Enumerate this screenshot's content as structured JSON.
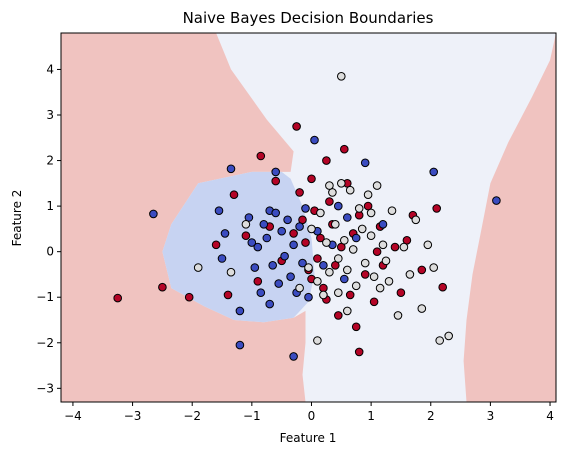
{
  "chart_data": {
    "type": "scatter",
    "title": "Naive Bayes Decision Boundaries",
    "xlabel": "Feature 1",
    "ylabel": "Feature 2",
    "xlim": [
      -4.2,
      4.1
    ],
    "ylim": [
      -3.3,
      4.8
    ],
    "xticks": [
      -4,
      -3,
      -2,
      -1,
      0,
      1,
      2,
      3,
      4
    ],
    "yticks": [
      -3,
      -2,
      -1,
      0,
      1,
      2,
      3,
      4
    ],
    "grid": false,
    "class_colors": {
      "red": "#b40426",
      "blue": "#3b4cc0",
      "white": "#dddddd"
    },
    "region_colors": {
      "red": "#f0c3c0",
      "blue": "#c7d3f2",
      "white": "#eef1f9"
    },
    "regions": {
      "left_red": [
        [
          -4.2,
          4.8
        ],
        [
          -1.6,
          4.8
        ],
        [
          -1.35,
          4.0
        ],
        [
          -0.75,
          2.9
        ],
        [
          -0.3,
          2.2
        ],
        [
          -0.35,
          1.75
        ],
        [
          -1.0,
          1.75
        ],
        [
          -1.9,
          1.5
        ],
        [
          -2.35,
          0.6
        ],
        [
          -2.5,
          0.0
        ],
        [
          -2.35,
          -0.8
        ],
        [
          -1.8,
          -1.2
        ],
        [
          -1.3,
          -1.5
        ],
        [
          -0.8,
          -1.55
        ],
        [
          -0.3,
          -1.45
        ],
        [
          -0.1,
          -1.3
        ],
        [
          -0.1,
          -2.0
        ],
        [
          -0.15,
          -2.7
        ],
        [
          -0.1,
          -3.3
        ],
        [
          -4.2,
          -3.3
        ]
      ],
      "right_red": [
        [
          4.1,
          4.8
        ],
        [
          4.1,
          -3.3
        ],
        [
          2.6,
          -3.3
        ],
        [
          2.55,
          -2.4
        ],
        [
          2.6,
          -1.5
        ],
        [
          2.7,
          -0.5
        ],
        [
          2.85,
          0.5
        ],
        [
          3.0,
          1.5
        ],
        [
          3.3,
          2.4
        ],
        [
          3.7,
          3.4
        ],
        [
          4.0,
          4.2
        ]
      ],
      "center_blue": [
        [
          -2.35,
          0.6
        ],
        [
          -2.5,
          0.0
        ],
        [
          -2.35,
          -0.8
        ],
        [
          -1.8,
          -1.2
        ],
        [
          -1.3,
          -1.5
        ],
        [
          -0.8,
          -1.55
        ],
        [
          -0.3,
          -1.45
        ],
        [
          -0.05,
          -1.1
        ],
        [
          0.05,
          -0.5
        ],
        [
          0.0,
          0.3
        ],
        [
          -0.15,
          1.0
        ],
        [
          -0.35,
          1.6
        ],
        [
          -0.5,
          1.75
        ],
        [
          -1.0,
          1.75
        ],
        [
          -1.9,
          1.5
        ]
      ]
    },
    "series": [
      {
        "class": "red",
        "points": [
          [
            -3.25,
            -1.02
          ],
          [
            -2.5,
            -0.78
          ],
          [
            -2.05,
            -1.0
          ],
          [
            -1.3,
            1.25
          ],
          [
            -0.85,
            2.1
          ],
          [
            -0.6,
            1.55
          ],
          [
            -0.3,
            0.4
          ],
          [
            -0.25,
            2.75
          ],
          [
            -0.2,
            1.3
          ],
          [
            -0.15,
            0.7
          ],
          [
            -0.1,
            0.2
          ],
          [
            -0.05,
            -0.4
          ],
          [
            0.0,
            1.6
          ],
          [
            0.0,
            -0.6
          ],
          [
            0.05,
            0.9
          ],
          [
            0.1,
            -0.15
          ],
          [
            0.15,
            0.3
          ],
          [
            0.2,
            -0.8
          ],
          [
            0.25,
            2.0
          ],
          [
            0.3,
            1.1
          ],
          [
            0.35,
            0.6
          ],
          [
            0.4,
            -0.3
          ],
          [
            0.45,
            -1.4
          ],
          [
            0.5,
            0.1
          ],
          [
            0.55,
            2.25
          ],
          [
            0.6,
            1.5
          ],
          [
            0.65,
            -0.95
          ],
          [
            0.7,
            0.4
          ],
          [
            0.8,
            0.8
          ],
          [
            0.9,
            -0.5
          ],
          [
            0.95,
            1.0
          ],
          [
            1.05,
            -1.1
          ],
          [
            1.1,
            0.0
          ],
          [
            1.15,
            0.55
          ],
          [
            1.2,
            -0.3
          ],
          [
            1.4,
            0.1
          ],
          [
            1.5,
            -0.9
          ],
          [
            1.6,
            0.25
          ],
          [
            1.7,
            0.8
          ],
          [
            1.85,
            -0.4
          ],
          [
            2.1,
            0.95
          ],
          [
            2.2,
            -0.78
          ],
          [
            0.75,
            -1.65
          ],
          [
            0.8,
            -2.2
          ],
          [
            0.25,
            -1.05
          ],
          [
            -0.7,
            0.55
          ],
          [
            -1.6,
            0.15
          ],
          [
            -1.1,
            0.35
          ],
          [
            -0.5,
            -0.2
          ],
          [
            -1.4,
            -0.95
          ],
          [
            -0.9,
            -0.65
          ]
        ],
        "color": "#b40426"
      },
      {
        "class": "blue",
        "points": [
          [
            -2.65,
            0.83
          ],
          [
            -1.35,
            1.82
          ],
          [
            -1.2,
            -2.05
          ],
          [
            -0.3,
            -2.3
          ],
          [
            -0.7,
            0.9
          ],
          [
            -0.8,
            0.6
          ],
          [
            -1.0,
            0.2
          ],
          [
            -1.05,
            0.75
          ],
          [
            -0.95,
            -0.35
          ],
          [
            -0.9,
            0.1
          ],
          [
            -0.85,
            -0.9
          ],
          [
            -0.75,
            0.3
          ],
          [
            -0.65,
            -0.3
          ],
          [
            -0.6,
            0.85
          ],
          [
            -0.55,
            -0.7
          ],
          [
            -0.5,
            0.45
          ],
          [
            -0.45,
            -0.1
          ],
          [
            -0.4,
            0.7
          ],
          [
            -0.35,
            -0.55
          ],
          [
            -0.3,
            0.15
          ],
          [
            -0.25,
            -0.9
          ],
          [
            -0.2,
            0.55
          ],
          [
            -0.15,
            -0.25
          ],
          [
            -0.1,
            0.95
          ],
          [
            -0.05,
            -1.0
          ],
          [
            0.05,
            2.45
          ],
          [
            0.1,
            0.45
          ],
          [
            0.2,
            -0.3
          ],
          [
            0.35,
            0.15
          ],
          [
            0.45,
            1.0
          ],
          [
            0.55,
            -0.6
          ],
          [
            0.6,
            0.75
          ],
          [
            0.75,
            0.3
          ],
          [
            0.9,
            1.95
          ],
          [
            1.2,
            0.6
          ],
          [
            2.05,
            1.75
          ],
          [
            3.1,
            1.12
          ],
          [
            -1.5,
            -0.15
          ],
          [
            -1.55,
            0.9
          ],
          [
            -1.2,
            -1.3
          ],
          [
            -0.7,
            -1.15
          ],
          [
            -1.45,
            0.4
          ],
          [
            -0.6,
            1.75
          ]
        ],
        "color": "#3b4cc0"
      },
      {
        "class": "white",
        "points": [
          [
            0.5,
            3.85
          ],
          [
            -1.9,
            -0.35
          ],
          [
            -1.35,
            -0.45
          ],
          [
            -1.1,
            0.6
          ],
          [
            -0.2,
            -0.8
          ],
          [
            0.0,
            0.5
          ],
          [
            0.1,
            -0.65
          ],
          [
            0.15,
            0.85
          ],
          [
            0.2,
            -0.95
          ],
          [
            0.25,
            0.2
          ],
          [
            0.3,
            -0.45
          ],
          [
            0.35,
            1.3
          ],
          [
            0.4,
            0.6
          ],
          [
            0.45,
            -0.15
          ],
          [
            0.5,
            1.5
          ],
          [
            0.55,
            0.25
          ],
          [
            0.6,
            -0.4
          ],
          [
            0.65,
            1.35
          ],
          [
            0.7,
            0.05
          ],
          [
            0.75,
            -0.75
          ],
          [
            0.8,
            0.95
          ],
          [
            0.85,
            0.5
          ],
          [
            0.9,
            -0.25
          ],
          [
            0.95,
            1.25
          ],
          [
            1.0,
            0.35
          ],
          [
            1.05,
            -0.55
          ],
          [
            1.1,
            1.45
          ],
          [
            1.15,
            -0.8
          ],
          [
            1.2,
            0.15
          ],
          [
            1.25,
            -0.2
          ],
          [
            1.35,
            0.9
          ],
          [
            1.45,
            -1.4
          ],
          [
            1.55,
            0.1
          ],
          [
            1.65,
            -0.5
          ],
          [
            1.75,
            0.7
          ],
          [
            1.85,
            -1.25
          ],
          [
            1.95,
            0.15
          ],
          [
            2.05,
            -0.35
          ],
          [
            2.15,
            -1.95
          ],
          [
            2.3,
            -1.85
          ],
          [
            0.1,
            -1.95
          ],
          [
            0.6,
            -1.3
          ],
          [
            1.3,
            -0.65
          ],
          [
            1.0,
            0.85
          ],
          [
            0.3,
            1.45
          ],
          [
            -0.05,
            -0.35
          ],
          [
            0.45,
            -0.9
          ]
        ],
        "color": "#dddddd"
      }
    ]
  }
}
